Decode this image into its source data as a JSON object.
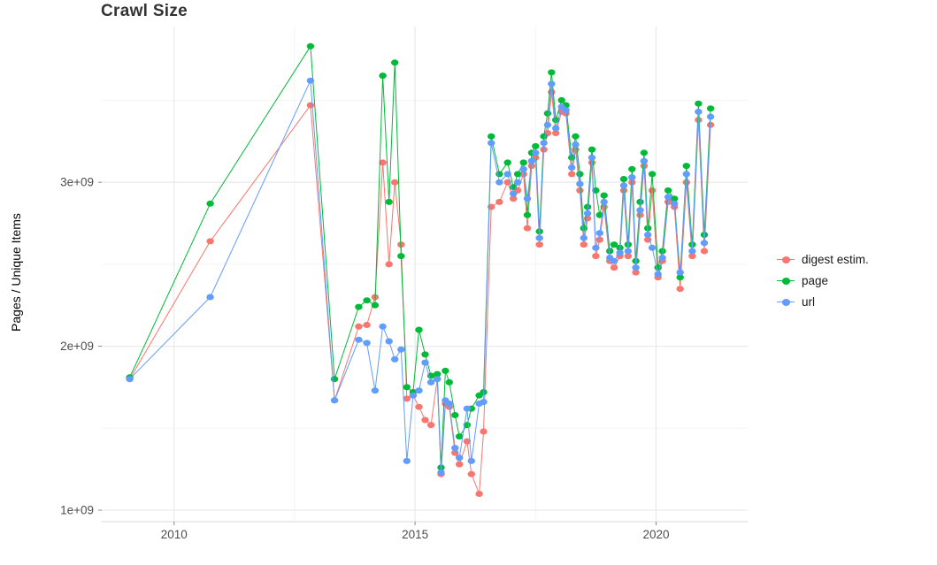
{
  "page": {
    "title": "Crawl Size"
  },
  "chart_data": {
    "type": "line",
    "title": "Crawl Size",
    "xlabel": "",
    "ylabel": "Pages / Unique Items",
    "xlim": [
      2008.5,
      2021.9
    ],
    "ylim": [
      930000000.0,
      3950000000.0
    ],
    "grid": true,
    "legend_position": "right",
    "x_ticks": [
      {
        "value": 2010,
        "label": "2010"
      },
      {
        "value": 2015,
        "label": "2015"
      },
      {
        "value": 2020,
        "label": "2020"
      }
    ],
    "x_minor": [
      2012.5,
      2017.5
    ],
    "y_ticks": [
      {
        "value": 1000000000.0,
        "label": "1e+09"
      },
      {
        "value": 2000000000.0,
        "label": "2e+09"
      },
      {
        "value": 3000000000.0,
        "label": "3e+09"
      }
    ],
    "y_minor": [
      1500000000.0,
      2500000000.0,
      3500000000.0
    ],
    "series": [
      {
        "name": "digest estim.",
        "key": "digest-estim",
        "color": "#F8766D"
      },
      {
        "name": "page",
        "key": "page",
        "color": "#00BA38"
      },
      {
        "name": "url",
        "key": "url",
        "color": "#619CFF"
      }
    ],
    "points_format": [
      "year",
      "digest estim.",
      "page",
      "url"
    ],
    "points": [
      [
        2009.08,
        1800000000.0,
        1810000000.0,
        1800000000.0
      ],
      [
        2010.75,
        2640000000.0,
        2870000000.0,
        2300000000.0
      ],
      [
        2012.83,
        3470000000.0,
        3830000000.0,
        3620000000.0
      ],
      [
        2013.33,
        1670000000.0,
        1800000000.0,
        1670000000.0
      ],
      [
        2013.83,
        2120000000.0,
        2240000000.0,
        2040000000.0
      ],
      [
        2014.0,
        2130000000.0,
        2280000000.0,
        2020000000.0
      ],
      [
        2014.17,
        2300000000.0,
        2250000000.0,
        1730000000.0
      ],
      [
        2014.33,
        3120000000.0,
        3650000000.0,
        2120000000.0
      ],
      [
        2014.46,
        2500000000.0,
        2880000000.0,
        2030000000.0
      ],
      [
        2014.58,
        3000000000.0,
        3730000000.0,
        1920000000.0
      ],
      [
        2014.71,
        2620000000.0,
        2550000000.0,
        1980000000.0
      ],
      [
        2014.83,
        1680000000.0,
        1750000000.0,
        1300000000.0
      ],
      [
        2014.96,
        1700000000.0,
        1720000000.0,
        1700000000.0
      ],
      [
        2015.08,
        1630000000.0,
        2100000000.0,
        1730000000.0
      ],
      [
        2015.21,
        1550000000.0,
        1950000000.0,
        1900000000.0
      ],
      [
        2015.33,
        1520000000.0,
        1820000000.0,
        1780000000.0
      ],
      [
        2015.46,
        1800000000.0,
        1830000000.0,
        1800000000.0
      ],
      [
        2015.54,
        1220000000.0,
        1260000000.0,
        1230000000.0
      ],
      [
        2015.63,
        1650000000.0,
        1850000000.0,
        1670000000.0
      ],
      [
        2015.71,
        1630000000.0,
        1780000000.0,
        1650000000.0
      ],
      [
        2015.83,
        1350000000.0,
        1580000000.0,
        1380000000.0
      ],
      [
        2015.92,
        1280000000.0,
        1450000000.0,
        1320000000.0
      ],
      [
        2016.08,
        1420000000.0,
        1520000000.0,
        1620000000.0
      ],
      [
        2016.17,
        1220000000.0,
        1620000000.0,
        1300000000.0
      ],
      [
        2016.33,
        1100000000.0,
        1700000000.0,
        1650000000.0
      ],
      [
        2016.42,
        1480000000.0,
        1720000000.0,
        1660000000.0
      ],
      [
        2016.58,
        2850000000.0,
        3280000000.0,
        3240000000.0
      ],
      [
        2016.75,
        2880000000.0,
        3050000000.0,
        3000000000.0
      ],
      [
        2016.92,
        3000000000.0,
        3120000000.0,
        3050000000.0
      ],
      [
        2017.04,
        2900000000.0,
        2970000000.0,
        2930000000.0
      ],
      [
        2017.13,
        2950000000.0,
        3050000000.0,
        3000000000.0
      ],
      [
        2017.25,
        3050000000.0,
        3120000000.0,
        3080000000.0
      ],
      [
        2017.33,
        2720000000.0,
        2800000000.0,
        2900000000.0
      ],
      [
        2017.42,
        3100000000.0,
        3180000000.0,
        3130000000.0
      ],
      [
        2017.5,
        3150000000.0,
        3220000000.0,
        3180000000.0
      ],
      [
        2017.58,
        2620000000.0,
        2700000000.0,
        2660000000.0
      ],
      [
        2017.67,
        3200000000.0,
        3280000000.0,
        3240000000.0
      ],
      [
        2017.75,
        3300000000.0,
        3420000000.0,
        3350000000.0
      ],
      [
        2017.83,
        3550000000.0,
        3670000000.0,
        3600000000.0
      ],
      [
        2017.92,
        3300000000.0,
        3380000000.0,
        3330000000.0
      ],
      [
        2018.04,
        3430000000.0,
        3500000000.0,
        3460000000.0
      ],
      [
        2018.13,
        3420000000.0,
        3470000000.0,
        3440000000.0
      ],
      [
        2018.25,
        3050000000.0,
        3150000000.0,
        3090000000.0
      ],
      [
        2018.33,
        3200000000.0,
        3280000000.0,
        3230000000.0
      ],
      [
        2018.42,
        2950000000.0,
        3050000000.0,
        2990000000.0
      ],
      [
        2018.5,
        2620000000.0,
        2720000000.0,
        2660000000.0
      ],
      [
        2018.58,
        2780000000.0,
        2850000000.0,
        2810000000.0
      ],
      [
        2018.67,
        3120000000.0,
        3200000000.0,
        3150000000.0
      ],
      [
        2018.75,
        2550000000.0,
        2950000000.0,
        2600000000.0
      ],
      [
        2018.83,
        2650000000.0,
        2800000000.0,
        2690000000.0
      ],
      [
        2018.92,
        2850000000.0,
        2920000000.0,
        2880000000.0
      ],
      [
        2019.04,
        2520000000.0,
        2580000000.0,
        2540000000.0
      ],
      [
        2019.13,
        2480000000.0,
        2620000000.0,
        2520000000.0
      ],
      [
        2019.25,
        2550000000.0,
        2600000000.0,
        2570000000.0
      ],
      [
        2019.33,
        2950000000.0,
        3020000000.0,
        2980000000.0
      ],
      [
        2019.42,
        2550000000.0,
        2620000000.0,
        2580000000.0
      ],
      [
        2019.5,
        3000000000.0,
        3080000000.0,
        3030000000.0
      ],
      [
        2019.58,
        2450000000.0,
        2520000000.0,
        2480000000.0
      ],
      [
        2019.67,
        2800000000.0,
        2880000000.0,
        2830000000.0
      ],
      [
        2019.75,
        3100000000.0,
        3180000000.0,
        3130000000.0
      ],
      [
        2019.83,
        2650000000.0,
        2720000000.0,
        2680000000.0
      ],
      [
        2019.92,
        2950000000.0,
        3050000000.0,
        2600000000.0
      ],
      [
        2020.04,
        2420000000.0,
        2480000000.0,
        2440000000.0
      ],
      [
        2020.13,
        2520000000.0,
        2580000000.0,
        2540000000.0
      ],
      [
        2020.25,
        2880000000.0,
        2950000000.0,
        2910000000.0
      ],
      [
        2020.38,
        2850000000.0,
        2900000000.0,
        2870000000.0
      ],
      [
        2020.5,
        2350000000.0,
        2420000000.0,
        2450000000.0
      ],
      [
        2020.63,
        3000000000.0,
        3100000000.0,
        3050000000.0
      ],
      [
        2020.75,
        2550000000.0,
        2620000000.0,
        2580000000.0
      ],
      [
        2020.88,
        3380000000.0,
        3480000000.0,
        3430000000.0
      ],
      [
        2021.0,
        2580000000.0,
        2680000000.0,
        2630000000.0
      ],
      [
        2021.13,
        3350000000.0,
        3450000000.0,
        3400000000.0
      ]
    ]
  }
}
